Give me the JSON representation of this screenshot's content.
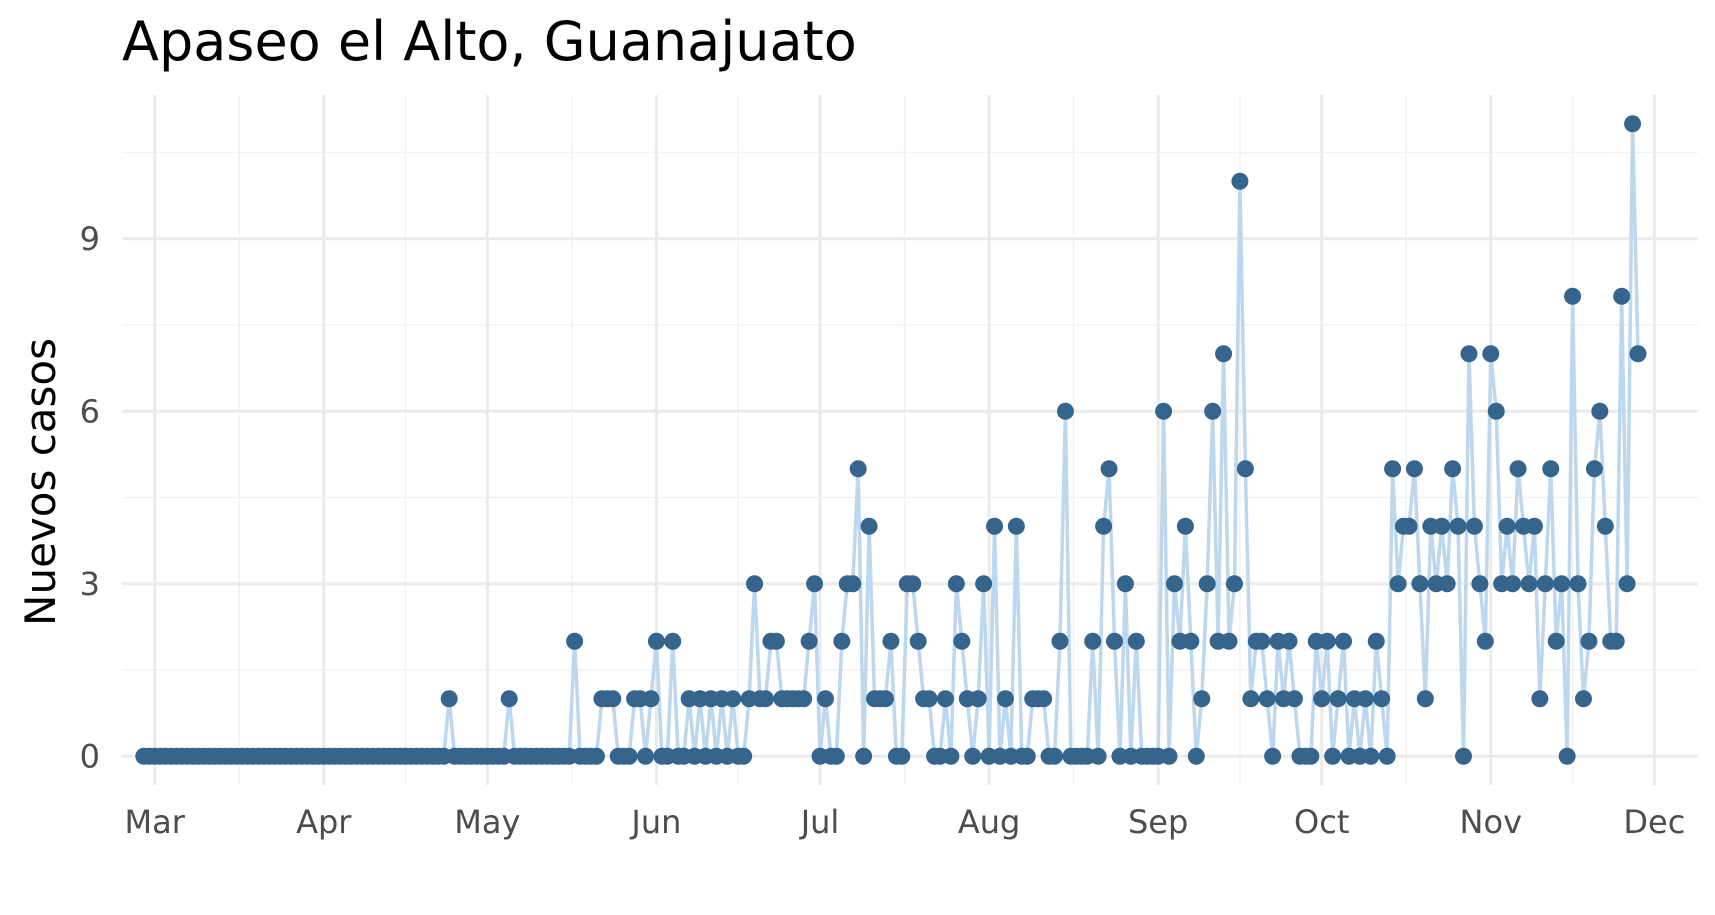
{
  "chart_data": {
    "type": "line",
    "title": "Apaseo el Alto, Guanajuato",
    "xlabel": "",
    "ylabel": "Nuevos casos",
    "x_start": "2020-02-28",
    "x_end": "2020-11-30",
    "xlim": [
      "2020-02-24",
      "2020-12-09"
    ],
    "ylim": [
      -0.5,
      11.5
    ],
    "y_ticks": [
      0,
      3,
      6,
      9
    ],
    "y_tick_labels": [
      "0",
      "3",
      "6",
      "9"
    ],
    "x_ticks": [
      "2020-03-01",
      "2020-04-01",
      "2020-05-01",
      "2020-06-01",
      "2020-07-01",
      "2020-08-01",
      "2020-09-01",
      "2020-10-01",
      "2020-11-01",
      "2020-12-01"
    ],
    "x_tick_labels": [
      "Mar",
      "Apr",
      "May",
      "Jun",
      "Jul",
      "Aug",
      "Sep",
      "Oct",
      "Nov",
      "Dec"
    ],
    "grid": true,
    "line_color": "#bdd7ee",
    "point_color": "#35648c",
    "series": [
      {
        "values": [
          0,
          0,
          0,
          0,
          0,
          0,
          0,
          0,
          0,
          0,
          0,
          0,
          0,
          0,
          0,
          0,
          0,
          0,
          0,
          0,
          0,
          0,
          0,
          0,
          0,
          0,
          0,
          0,
          0,
          0,
          0,
          0,
          0,
          0,
          0,
          0,
          0,
          0,
          0,
          0,
          0,
          0,
          0,
          0,
          0,
          0,
          0,
          0,
          0,
          0,
          0,
          0,
          0,
          0,
          0,
          0,
          1,
          0,
          0,
          0,
          0,
          0,
          0,
          0,
          0,
          0,
          0,
          1,
          0,
          0,
          0,
          0,
          0,
          0,
          0,
          0,
          0,
          0,
          0,
          2,
          0,
          0,
          0,
          0,
          1,
          1,
          1,
          0,
          0,
          0,
          1,
          1,
          0,
          1,
          2,
          0,
          0,
          2,
          0,
          0,
          1,
          0,
          1,
          0,
          1,
          0,
          1,
          0,
          1,
          0,
          0,
          1,
          3,
          1,
          1,
          2,
          2,
          1,
          1,
          1,
          1,
          1,
          2,
          3,
          0,
          1,
          0,
          0,
          2,
          3,
          3,
          5,
          0,
          4,
          1,
          1,
          1,
          2,
          0,
          0,
          3,
          3,
          2,
          1,
          1,
          0,
          0,
          1,
          0,
          3,
          2,
          1,
          0,
          1,
          3,
          0,
          4,
          0,
          1,
          0,
          4,
          0,
          0,
          1,
          1,
          1,
          0,
          0,
          2,
          6,
          0,
          0,
          0,
          0,
          2,
          0,
          4,
          5,
          2,
          0,
          3,
          0,
          2,
          0,
          0,
          0,
          0,
          6,
          0,
          3,
          2,
          4,
          2,
          0,
          1,
          3,
          6,
          2,
          7,
          2,
          3,
          10,
          5,
          1,
          2,
          2,
          1,
          0,
          2,
          1,
          2,
          1,
          0,
          0,
          0,
          2,
          1,
          2,
          0,
          1,
          2,
          0,
          1,
          0,
          1,
          0,
          2,
          1,
          0,
          5,
          3,
          4,
          4,
          5,
          3,
          1,
          4,
          3,
          4,
          3,
          5,
          4,
          0,
          7,
          4,
          3,
          2,
          7,
          6,
          3,
          4,
          3,
          5,
          4,
          3,
          4,
          1,
          3,
          5,
          2,
          3,
          0,
          8,
          3,
          1,
          2,
          5,
          6,
          4,
          2,
          2,
          8,
          3,
          11,
          7
        ]
      }
    ]
  }
}
